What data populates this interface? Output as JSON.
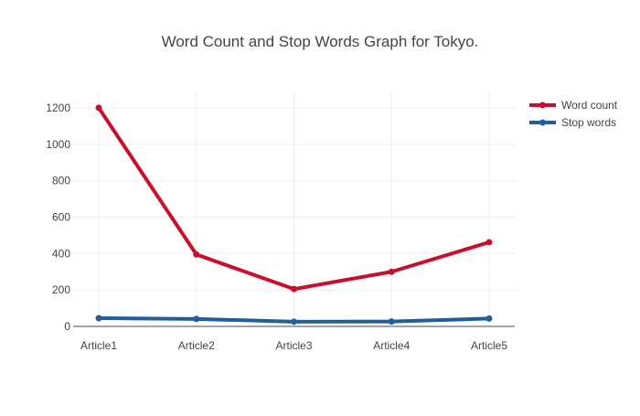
{
  "chart_data": {
    "type": "line",
    "title": "Word Count and Stop Words Graph for Tokyo.",
    "xlabel": "",
    "ylabel": "",
    "categories": [
      "Article1",
      "Article2",
      "Article3",
      "Article4",
      "Article5"
    ],
    "series": [
      {
        "name": "Word count",
        "values": [
          1200,
          395,
          205,
          300,
          462
        ],
        "color": "#c8102e"
      },
      {
        "name": "Stop words",
        "values": [
          45,
          41,
          26,
          27,
          43
        ],
        "color": "#1f5f9f"
      }
    ],
    "ylim": [
      0,
      1290
    ],
    "yticks": [
      0,
      200,
      400,
      600,
      800,
      1000,
      1200
    ],
    "grid": true,
    "legend": "top-right"
  }
}
